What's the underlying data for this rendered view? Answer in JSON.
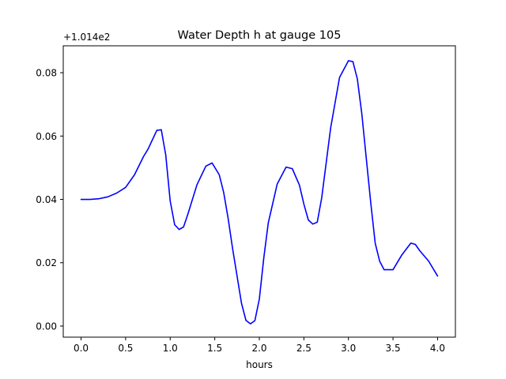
{
  "chart_data": {
    "type": "line",
    "title": "Water Depth h at gauge 105",
    "xlabel": "hours",
    "ylabel": "",
    "offset_label": "+1.014e2",
    "xlim": [
      -0.2,
      4.2
    ],
    "ylim": [
      -0.0035,
      0.0885
    ],
    "x_ticks": [
      0.0,
      0.5,
      1.0,
      1.5,
      2.0,
      2.5,
      3.0,
      3.5,
      4.0
    ],
    "x_tick_labels": [
      "0.0",
      "0.5",
      "1.0",
      "1.5",
      "2.0",
      "2.5",
      "3.0",
      "3.5",
      "4.0"
    ],
    "y_ticks": [
      0.0,
      0.02,
      0.04,
      0.06,
      0.08
    ],
    "y_tick_labels": [
      "0.00",
      "0.02",
      "0.04",
      "0.06",
      "0.08"
    ],
    "grid": false,
    "legend": "none",
    "series": [
      {
        "color": "#0000ff",
        "x": [
          0.0,
          0.1,
          0.2,
          0.3,
          0.4,
          0.5,
          0.6,
          0.7,
          0.75,
          0.8,
          0.85,
          0.9,
          0.95,
          1.0,
          1.05,
          1.1,
          1.15,
          1.2,
          1.3,
          1.4,
          1.47,
          1.55,
          1.6,
          1.65,
          1.7,
          1.8,
          1.85,
          1.9,
          1.95,
          2.0,
          2.05,
          2.1,
          2.2,
          2.3,
          2.37,
          2.45,
          2.5,
          2.55,
          2.6,
          2.65,
          2.7,
          2.75,
          2.8,
          2.9,
          3.0,
          3.05,
          3.1,
          3.15,
          3.2,
          3.25,
          3.3,
          3.35,
          3.4,
          3.5,
          3.6,
          3.7,
          3.75,
          3.8,
          3.9,
          4.0
        ],
        "y": [
          0.04,
          0.04,
          0.0402,
          0.0408,
          0.042,
          0.0438,
          0.0478,
          0.0535,
          0.0558,
          0.0588,
          0.0618,
          0.062,
          0.054,
          0.0395,
          0.032,
          0.0305,
          0.0313,
          0.0355,
          0.0446,
          0.0505,
          0.0515,
          0.0478,
          0.0422,
          0.034,
          0.0245,
          0.0072,
          0.0018,
          0.0007,
          0.0017,
          0.0085,
          0.0215,
          0.0325,
          0.0448,
          0.0502,
          0.0497,
          0.0445,
          0.0385,
          0.0335,
          0.0322,
          0.0328,
          0.0405,
          0.0515,
          0.0625,
          0.0785,
          0.0838,
          0.0835,
          0.078,
          0.067,
          0.053,
          0.039,
          0.0262,
          0.0205,
          0.0178,
          0.0178,
          0.0225,
          0.0262,
          0.0258,
          0.0238,
          0.0205,
          0.0158
        ]
      }
    ]
  }
}
